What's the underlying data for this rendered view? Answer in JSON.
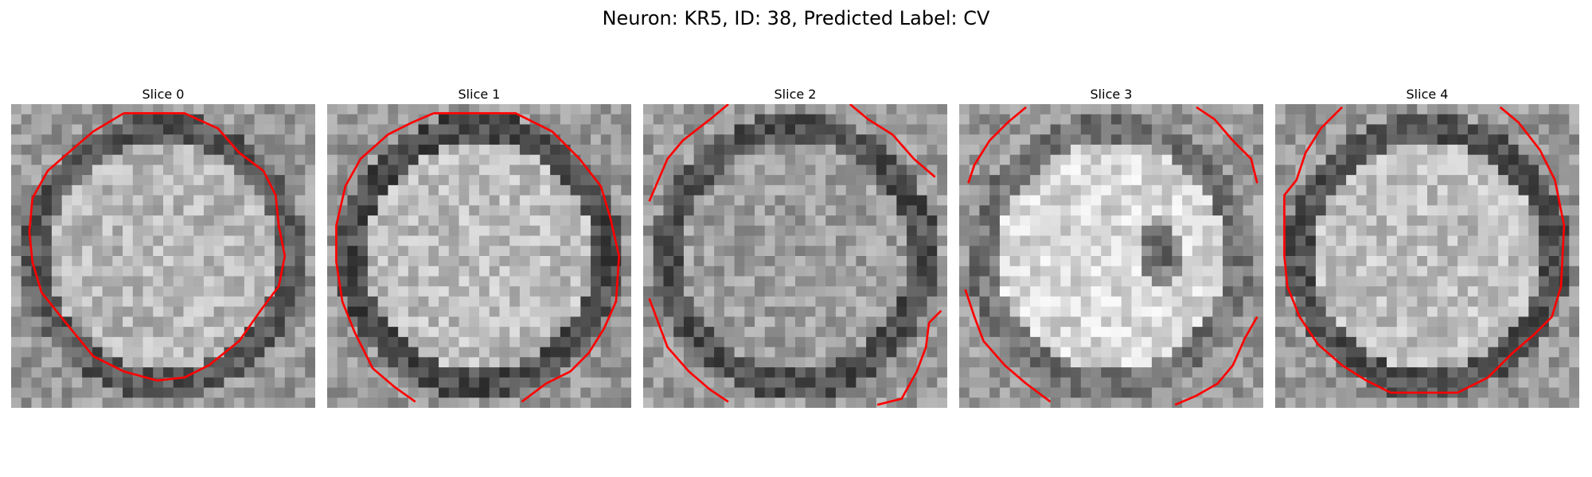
{
  "title": "Neuron: KR5, ID: 38, Predicted Label: CV",
  "colors": {
    "background": "#ffffff",
    "contour": "#ff0000"
  },
  "slices": [
    {
      "label": "Slice 0",
      "ring_intensity": 0.35,
      "inner_intensity": 0.72,
      "dark_blob": false,
      "contour": [
        [
          0.37,
          0.03
        ],
        [
          0.57,
          0.03
        ],
        [
          0.68,
          0.08
        ],
        [
          0.75,
          0.16
        ],
        [
          0.83,
          0.22
        ],
        [
          0.87,
          0.3
        ],
        [
          0.88,
          0.4
        ],
        [
          0.9,
          0.5
        ],
        [
          0.88,
          0.6
        ],
        [
          0.82,
          0.68
        ],
        [
          0.75,
          0.78
        ],
        [
          0.65,
          0.86
        ],
        [
          0.57,
          0.9
        ],
        [
          0.48,
          0.91
        ],
        [
          0.37,
          0.88
        ],
        [
          0.27,
          0.83
        ],
        [
          0.18,
          0.72
        ],
        [
          0.1,
          0.62
        ],
        [
          0.07,
          0.52
        ],
        [
          0.06,
          0.42
        ],
        [
          0.07,
          0.31
        ],
        [
          0.12,
          0.22
        ],
        [
          0.2,
          0.15
        ],
        [
          0.27,
          0.09
        ],
        [
          0.37,
          0.03
        ]
      ]
    },
    {
      "label": "Slice 1",
      "ring_intensity": 0.3,
      "inner_intensity": 0.74,
      "dark_blob": false,
      "contour": [
        [
          0.35,
          0.03
        ],
        [
          0.62,
          0.03
        ],
        [
          0.74,
          0.09
        ],
        [
          0.83,
          0.18
        ],
        [
          0.9,
          0.27
        ],
        [
          0.93,
          0.37
        ],
        [
          0.96,
          0.5
        ],
        [
          0.95,
          0.65
        ],
        [
          0.91,
          0.74
        ],
        [
          0.86,
          0.82
        ],
        [
          0.8,
          0.88
        ],
        [
          0.72,
          0.92
        ],
        [
          0.64,
          0.98
        ]
      ],
      "contour2": [
        [
          0.29,
          0.98
        ],
        [
          0.22,
          0.93
        ],
        [
          0.15,
          0.87
        ],
        [
          0.09,
          0.75
        ],
        [
          0.05,
          0.65
        ],
        [
          0.03,
          0.52
        ],
        [
          0.03,
          0.4
        ],
        [
          0.06,
          0.27
        ],
        [
          0.11,
          0.18
        ],
        [
          0.2,
          0.1
        ],
        [
          0.28,
          0.06
        ],
        [
          0.35,
          0.03
        ]
      ]
    },
    {
      "label": "Slice 2",
      "ring_intensity": 0.32,
      "inner_intensity": 0.62,
      "dark_blob": false,
      "contour": [
        [
          0.28,
          0.0
        ],
        [
          0.22,
          0.05
        ],
        [
          0.13,
          0.12
        ],
        [
          0.08,
          0.18
        ],
        [
          0.05,
          0.25
        ],
        [
          0.02,
          0.32
        ]
      ],
      "contour2": [
        [
          0.68,
          0.0
        ],
        [
          0.74,
          0.05
        ],
        [
          0.82,
          0.1
        ],
        [
          0.89,
          0.18
        ],
        [
          0.96,
          0.24
        ]
      ],
      "contour3": [
        [
          0.02,
          0.64
        ],
        [
          0.05,
          0.72
        ],
        [
          0.08,
          0.8
        ],
        [
          0.15,
          0.88
        ],
        [
          0.22,
          0.94
        ],
        [
          0.28,
          0.98
        ]
      ],
      "contour4": [
        [
          0.77,
          0.99
        ],
        [
          0.85,
          0.97
        ],
        [
          0.9,
          0.88
        ],
        [
          0.93,
          0.8
        ],
        [
          0.94,
          0.72
        ],
        [
          0.98,
          0.68
        ]
      ]
    },
    {
      "label": "Slice 3",
      "ring_intensity": 0.45,
      "inner_intensity": 0.85,
      "dark_blob": true,
      "contour": [
        [
          0.22,
          0.01
        ],
        [
          0.16,
          0.06
        ],
        [
          0.1,
          0.12
        ],
        [
          0.05,
          0.2
        ],
        [
          0.03,
          0.26
        ]
      ],
      "contour2": [
        [
          0.78,
          0.01
        ],
        [
          0.84,
          0.05
        ],
        [
          0.9,
          0.12
        ],
        [
          0.96,
          0.18
        ],
        [
          0.98,
          0.26
        ]
      ],
      "contour3": [
        [
          0.02,
          0.61
        ],
        [
          0.05,
          0.7
        ],
        [
          0.08,
          0.78
        ],
        [
          0.15,
          0.86
        ],
        [
          0.22,
          0.92
        ],
        [
          0.3,
          0.98
        ]
      ],
      "contour4": [
        [
          0.71,
          0.99
        ],
        [
          0.78,
          0.96
        ],
        [
          0.85,
          0.92
        ],
        [
          0.9,
          0.86
        ],
        [
          0.94,
          0.77
        ],
        [
          0.98,
          0.7
        ]
      ]
    },
    {
      "label": "Slice 4",
      "ring_intensity": 0.33,
      "inner_intensity": 0.75,
      "dark_blob": false,
      "contour": [
        [
          0.22,
          0.01
        ],
        [
          0.15,
          0.08
        ],
        [
          0.1,
          0.16
        ],
        [
          0.07,
          0.25
        ],
        [
          0.03,
          0.3
        ],
        [
          0.03,
          0.5
        ],
        [
          0.04,
          0.6
        ],
        [
          0.08,
          0.7
        ],
        [
          0.14,
          0.79
        ],
        [
          0.22,
          0.86
        ],
        [
          0.3,
          0.91
        ],
        [
          0.38,
          0.95
        ],
        [
          0.6,
          0.95
        ],
        [
          0.7,
          0.9
        ],
        [
          0.78,
          0.82
        ],
        [
          0.85,
          0.76
        ],
        [
          0.91,
          0.7
        ],
        [
          0.94,
          0.6
        ],
        [
          0.95,
          0.4
        ],
        [
          0.92,
          0.25
        ],
        [
          0.87,
          0.15
        ],
        [
          0.8,
          0.06
        ],
        [
          0.74,
          0.01
        ]
      ]
    }
  ]
}
